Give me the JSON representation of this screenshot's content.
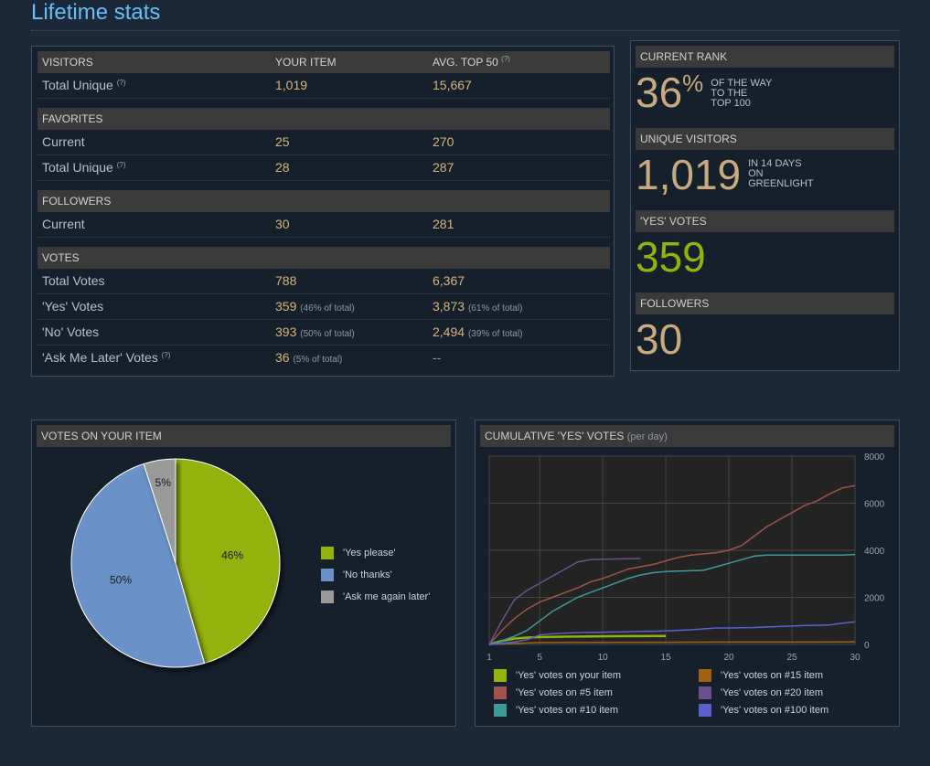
{
  "page_title": "Lifetime stats",
  "stats": {
    "visitors": {
      "header": "VISITORS",
      "col_your": "YOUR ITEM",
      "col_avg": "AVG. TOP 50",
      "help": "(?)",
      "rows": [
        {
          "label": "Total Unique",
          "help": "(?)",
          "your": "1,019",
          "avg": "15,667"
        }
      ]
    },
    "favorites": {
      "header": "FAVORITES",
      "rows": [
        {
          "label": "Current",
          "your": "25",
          "avg": "270"
        },
        {
          "label": "Total Unique",
          "help": "(?)",
          "your": "28",
          "avg": "287"
        }
      ]
    },
    "followers": {
      "header": "FOLLOWERS",
      "rows": [
        {
          "label": "Current",
          "your": "30",
          "avg": "281"
        }
      ]
    },
    "votes": {
      "header": "VOTES",
      "rows": [
        {
          "label": "Total Votes",
          "your": "788",
          "avg": "6,367"
        },
        {
          "label": "'Yes' Votes",
          "your": "359",
          "your_note": "(46% of total)",
          "avg": "3,873",
          "avg_note": "(61% of total)"
        },
        {
          "label": "'No' Votes",
          "your": "393",
          "your_note": "(50% of total)",
          "avg": "2,494",
          "avg_note": "(39% of total)"
        },
        {
          "label": "'Ask Me Later' Votes",
          "help": "(?)",
          "your": "36",
          "your_note": "(5% of total)",
          "avg": "--"
        }
      ]
    }
  },
  "summary": {
    "rank": {
      "header": "CURRENT RANK",
      "value": "36",
      "unit": "%",
      "note1": "OF THE WAY",
      "note2": "TO THE",
      "note3": "TOP 100"
    },
    "visitors": {
      "header": "UNIQUE VISITORS",
      "value": "1,019",
      "note1": "IN 14 DAYS",
      "note2": "ON",
      "note3": "GREENLIGHT"
    },
    "yes": {
      "header": "'YES' VOTES",
      "value": "359"
    },
    "followers": {
      "header": "FOLLOWERS",
      "value": "30"
    }
  },
  "colors": {
    "yes": "#93b20a",
    "no": "#6b92c8",
    "later": "#9a9a9a",
    "accent": "#66c0f4",
    "gold": "#c8aa7d"
  },
  "chart_data": [
    {
      "type": "pie",
      "title": "VOTES ON YOUR ITEM",
      "slices": [
        {
          "label": "'Yes please'",
          "value": 46,
          "text": "46%"
        },
        {
          "label": "'No thanks'",
          "value": 50,
          "text": "50%"
        },
        {
          "label": "'Ask me again later'",
          "value": 5,
          "text": "5%"
        }
      ]
    },
    {
      "type": "line",
      "title": "CUMULATIVE 'YES' VOTES",
      "subtitle": "(per day)",
      "x_ticks": [
        "1",
        "5",
        "10",
        "15",
        "20",
        "25",
        "30"
      ],
      "y_ticks": [
        "0",
        "2000",
        "4000",
        "6000",
        "8000"
      ],
      "xlim": [
        1,
        30
      ],
      "ylim": [
        0,
        8000
      ],
      "series": [
        {
          "name": "'Yes' votes on your item",
          "color": "#93b20a",
          "x": [
            1,
            2,
            3,
            4,
            5,
            6,
            7,
            8,
            9,
            10,
            11,
            12,
            13,
            14,
            15
          ],
          "y": [
            0,
            150,
            250,
            290,
            310,
            320,
            330,
            335,
            340,
            345,
            350,
            352,
            355,
            357,
            359
          ]
        },
        {
          "name": "'Yes' votes on #5 item",
          "color": "#a0524b",
          "x": [
            1,
            2,
            3,
            4,
            5,
            6,
            7,
            8,
            9,
            10,
            11,
            12,
            13,
            14,
            15,
            16,
            17,
            18,
            19,
            20,
            21,
            22,
            23,
            24,
            25,
            26,
            27,
            28,
            29,
            30
          ],
          "y": [
            0,
            600,
            1100,
            1500,
            1800,
            2000,
            2200,
            2400,
            2650,
            2800,
            3000,
            3200,
            3300,
            3400,
            3550,
            3700,
            3800,
            3850,
            3900,
            4000,
            4200,
            4600,
            5000,
            5300,
            5600,
            5900,
            6100,
            6400,
            6650,
            6750
          ]
        },
        {
          "name": "'Yes' votes on #10 item",
          "color": "#3e9a9a",
          "x": [
            1,
            2,
            3,
            4,
            5,
            6,
            7,
            8,
            9,
            10,
            11,
            12,
            13,
            14,
            15,
            16,
            17,
            18,
            19,
            20,
            21,
            22,
            23,
            24,
            25,
            26,
            27,
            28,
            29,
            30
          ],
          "y": [
            0,
            150,
            350,
            600,
            1000,
            1400,
            1700,
            2000,
            2200,
            2400,
            2600,
            2800,
            2950,
            3050,
            3100,
            3120,
            3130,
            3150,
            3300,
            3450,
            3600,
            3750,
            3800,
            3800,
            3800,
            3800,
            3800,
            3800,
            3800,
            3820
          ]
        },
        {
          "name": "'Yes' votes on #15 item",
          "color": "#a0620f",
          "x": [
            1,
            5,
            10,
            15,
            20,
            25,
            30
          ],
          "y": [
            0,
            80,
            90,
            95,
            100,
            100,
            105
          ]
        },
        {
          "name": "'Yes' votes on #20 item",
          "color": "#6b4f8e",
          "x": [
            1,
            2,
            3,
            4,
            5,
            6,
            7,
            8,
            9,
            10,
            11,
            12,
            13
          ],
          "y": [
            0,
            1000,
            1900,
            2300,
            2600,
            2900,
            3200,
            3500,
            3600,
            3620,
            3630,
            3640,
            3650
          ]
        },
        {
          "name": "'Yes' votes on #100 item",
          "color": "#5b5fd0",
          "x": [
            1,
            2,
            3,
            4,
            5,
            6,
            7,
            8,
            9,
            10,
            11,
            12,
            13,
            14,
            15,
            16,
            17,
            18,
            19,
            20,
            21,
            22,
            23,
            24,
            25,
            26,
            27,
            28,
            29,
            30
          ],
          "y": [
            0,
            50,
            100,
            200,
            400,
            450,
            480,
            500,
            510,
            520,
            530,
            540,
            550,
            560,
            580,
            600,
            620,
            660,
            700,
            700,
            710,
            720,
            740,
            760,
            780,
            800,
            810,
            830,
            900,
            960
          ]
        }
      ]
    }
  ]
}
